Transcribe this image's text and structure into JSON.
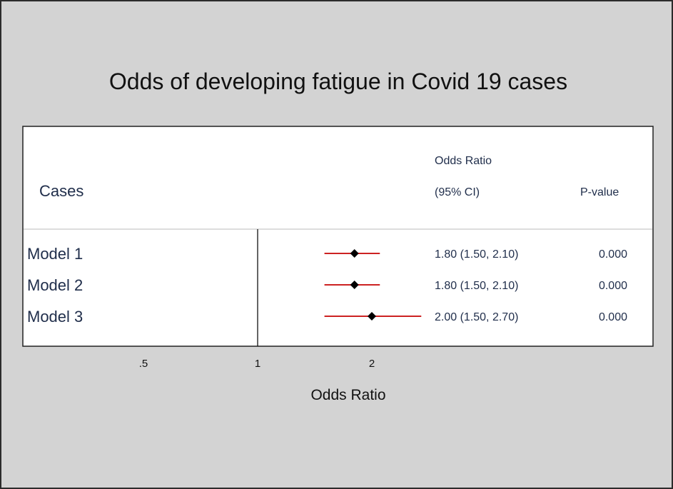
{
  "chart_data": {
    "type": "forest",
    "title": "Odds of developing fatigue in Covid 19 cases",
    "xlabel": "Odds Ratio",
    "scale": "log",
    "xlim": [
      0.25,
      4
    ],
    "reference_line": 1,
    "x_ticks": [
      {
        "value": 0.5,
        "label": ".5"
      },
      {
        "value": 1,
        "label": "1"
      },
      {
        "value": 2,
        "label": "2"
      }
    ],
    "headers": {
      "label_col": "Cases",
      "or_col_line1": "Odds Ratio",
      "or_col_line2": "(95% CI)",
      "p_col": "P-value"
    },
    "rows": [
      {
        "label": "Model 1",
        "or": 1.8,
        "ci_low": 1.5,
        "ci_high": 2.1,
        "or_text": "1.80 (1.50, 2.10)",
        "p_text": "0.000"
      },
      {
        "label": "Model 2",
        "or": 1.8,
        "ci_low": 1.5,
        "ci_high": 2.1,
        "or_text": "1.80 (1.50, 2.10)",
        "p_text": "0.000"
      },
      {
        "label": "Model 3",
        "or": 2.0,
        "ci_low": 1.5,
        "ci_high": 2.7,
        "or_text": "2.00 (1.50, 2.70)",
        "p_text": "0.000"
      }
    ],
    "colors": {
      "background": "#d3d3d3",
      "plot_area": "#ffffff",
      "ci_line": "#cc2222",
      "marker": "#000000",
      "text": "#1f2d4a"
    }
  }
}
